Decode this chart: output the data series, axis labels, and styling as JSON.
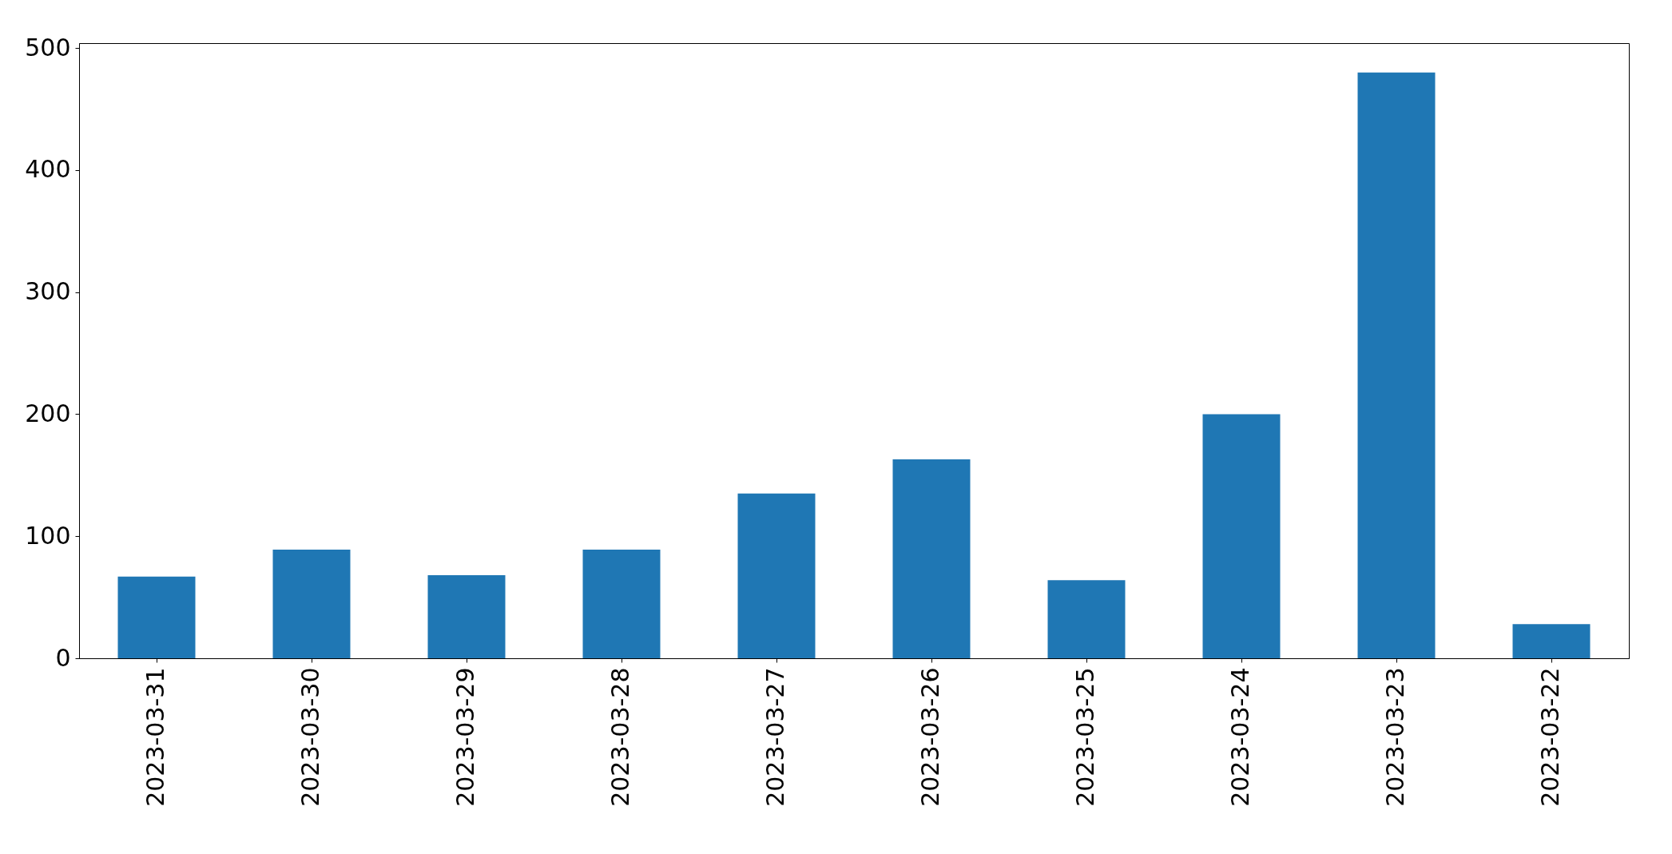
{
  "chart_data": {
    "type": "bar",
    "categories": [
      "2023-03-31",
      "2023-03-30",
      "2023-03-29",
      "2023-03-28",
      "2023-03-27",
      "2023-03-26",
      "2023-03-25",
      "2023-03-24",
      "2023-03-23",
      "2023-03-22"
    ],
    "values": [
      67,
      89,
      68,
      89,
      135,
      163,
      64,
      200,
      480,
      28
    ],
    "color": "#1f77b4",
    "ylim": [
      0,
      504
    ],
    "yticks": [
      0,
      100,
      200,
      300,
      400,
      500
    ],
    "grid": false
  }
}
